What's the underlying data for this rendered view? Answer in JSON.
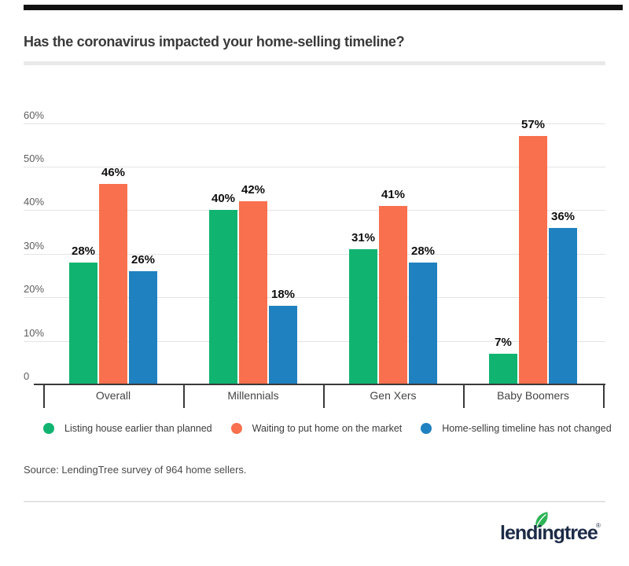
{
  "page": {
    "title": "Has the coronavirus impacted your home-selling timeline?",
    "source": "Source: LendingTree survey of 964 home sellers.",
    "brand": {
      "logo_text": "lendingtree",
      "registered_mark": "®",
      "logo_color": "#1c2b47",
      "leaf_color": "#2eb457"
    },
    "accent_bar_color": "#111111"
  },
  "chart_data": {
    "type": "bar",
    "title": "Has the coronavirus impacted your home-selling timeline?",
    "categories": [
      "Overall",
      "Millennials",
      "Gen Xers",
      "Baby Boomers"
    ],
    "series": [
      {
        "name": "Listing house earlier than planned",
        "color": "#10B470",
        "values": [
          28,
          40,
          31,
          7
        ]
      },
      {
        "name": "Waiting to put home on the market",
        "color": "#F8704D",
        "values": [
          46,
          42,
          41,
          57
        ]
      },
      {
        "name": "Home-selling timeline has not changed",
        "color": "#1F81C0",
        "values": [
          26,
          18,
          28,
          36
        ]
      }
    ],
    "value_suffix": "%",
    "ylim": [
      0,
      60
    ],
    "yticks": [
      0,
      10,
      20,
      30,
      40,
      50,
      60
    ],
    "ytick_labels": [
      "0",
      "10%",
      "20%",
      "30%",
      "40%",
      "50%",
      "60%"
    ],
    "grid": true,
    "data_labels": true,
    "legend_position": "bottom",
    "colors": {
      "gridline": "#e4e4e4",
      "axis": "#3a3a3a",
      "data_label": "#0f0f0f",
      "tick_label": "#5d5d5d",
      "category_label": "#454545"
    }
  }
}
